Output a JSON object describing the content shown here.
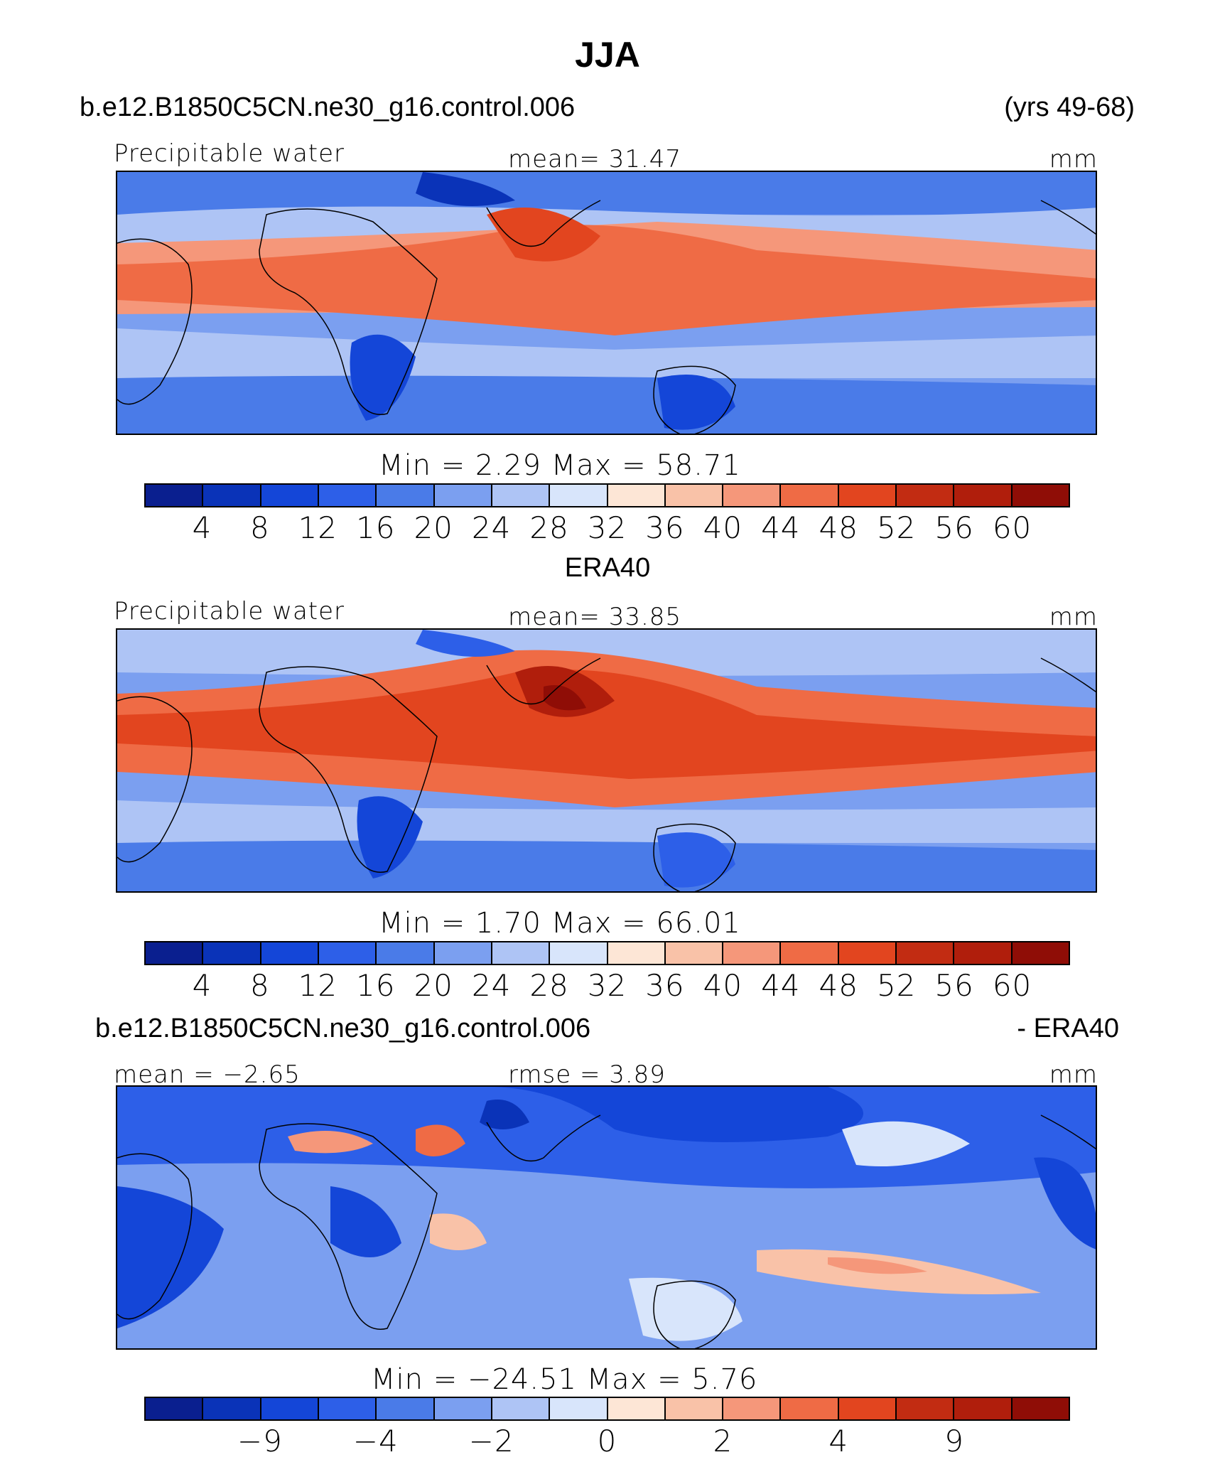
{
  "title": "JJA",
  "panels": [
    {
      "case_left": "b.e12.B1850C5CN.ne30_g16.control.006",
      "case_right": "(yrs 49-68)",
      "variable_label": "Precipitable water",
      "center_label": "mean=   31.47",
      "units": "mm",
      "stats": "Min  =      2.29  Max  =    58.71"
    },
    {
      "case_center": "ERA40",
      "variable_label": "Precipitable water",
      "center_label": "mean=   33.85",
      "units": "mm",
      "stats": "Min  =      1.70  Max  =    66.01"
    },
    {
      "case_left": "b.e12.B1850C5CN.ne30_g16.control.006",
      "case_right": "- ERA40",
      "left_label": "mean  =   −2.65",
      "center_label": "rmse  =      3.89",
      "units": "mm",
      "stats": "Min  =  −24.51  Max  =      5.76"
    }
  ],
  "colorbar_ticks_main": [
    "4",
    "8",
    "12",
    "16",
    "20",
    "24",
    "28",
    "32",
    "36",
    "40",
    "44",
    "48",
    "52",
    "56",
    "60"
  ],
  "colorbar_ticks_diff": [
    "−9",
    "−4",
    "−2",
    "0",
    "2",
    "4",
    "9"
  ],
  "colors": {
    "palette": [
      "#0a1f8f",
      "#0a33b8",
      "#1446d8",
      "#2d5fe8",
      "#4a7be8",
      "#7b9ff0",
      "#aec4f5",
      "#d8e5fb",
      "#fde6d6",
      "#f9c2a8",
      "#f5977a",
      "#ef6b45",
      "#e2451f",
      "#c22c12",
      "#b01e0c",
      "#8f0d06"
    ]
  },
  "chart_data": [
    {
      "type": "heatmap",
      "title": "Precipitable water",
      "units": "mm",
      "mean": 31.47,
      "min": 2.29,
      "max": 58.71,
      "colorbar_levels": [
        4,
        8,
        12,
        16,
        20,
        24,
        28,
        32,
        36,
        40,
        44,
        48,
        52,
        56,
        60
      ]
    },
    {
      "type": "heatmap",
      "title": "Precipitable water",
      "units": "mm",
      "mean": 33.85,
      "min": 1.7,
      "max": 66.01,
      "colorbar_levels": [
        4,
        8,
        12,
        16,
        20,
        24,
        28,
        32,
        36,
        40,
        44,
        48,
        52,
        56,
        60
      ]
    },
    {
      "type": "heatmap",
      "units": "mm",
      "mean": -2.65,
      "rmse": 3.89,
      "min": -24.51,
      "max": 5.76,
      "colorbar_levels": [
        -9,
        -4,
        -2,
        0,
        2,
        4,
        9
      ]
    }
  ]
}
